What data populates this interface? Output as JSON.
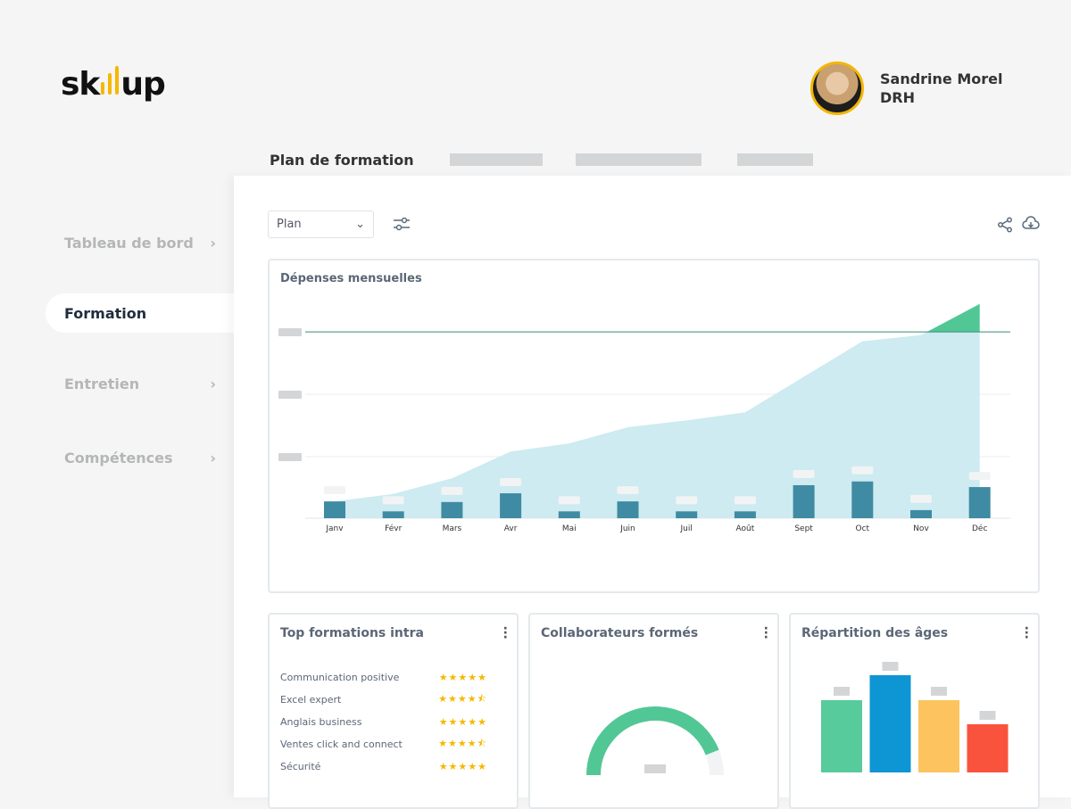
{
  "brand": {
    "logo_text": "skillup",
    "accent": "#f5b800"
  },
  "user": {
    "name": "Sandrine Morel",
    "role": "DRH"
  },
  "tabs": {
    "active": "Plan de formation"
  },
  "sidebar": {
    "items": [
      {
        "label": "Tableau de bord",
        "active": false
      },
      {
        "label": "Formation",
        "active": true
      },
      {
        "label": "Entretien",
        "active": false
      },
      {
        "label": "Compétences",
        "active": false
      }
    ]
  },
  "toolbar": {
    "select_value": "Plan",
    "filter_icon": "sliders-icon",
    "share_icon": "share-icon",
    "download_icon": "cloud-download-icon"
  },
  "monthly": {
    "title": "Dépenses mensuelles"
  },
  "chart_data": [
    {
      "type": "bar",
      "title": "Dépenses mensuelles",
      "categories": [
        "Janv",
        "Févr",
        "Mars",
        "Avr",
        "Mai",
        "Juin",
        "Juil",
        "Août",
        "Sept",
        "Oct",
        "Nov",
        "Déc"
      ],
      "series": [
        {
          "type": "bar",
          "values": [
            27,
            11,
            26,
            40,
            11,
            27,
            11,
            11,
            53,
            59,
            13,
            50
          ],
          "color": "#3f8ba3"
        },
        {
          "type": "area",
          "values": [
            27,
            39,
            64,
            107,
            120,
            146,
            157,
            170,
            227,
            284,
            294,
            344
          ],
          "color": "#cdebf0"
        }
      ],
      "target": 299,
      "target_color": "#3c8c7a",
      "over_target_color": "#52c796",
      "ylim": [
        0,
        345
      ],
      "grid": true
    },
    {
      "type": "gauge",
      "title": "Collaborateurs formés",
      "value": 0.88,
      "color": "#52c796"
    },
    {
      "type": "bar",
      "title": "Répartition des âges",
      "values": [
        81,
        109,
        81,
        54
      ],
      "colors": [
        "#57cb9c",
        "#0e95d3",
        "#fcc35e",
        "#f9533e"
      ]
    }
  ],
  "top_formations": {
    "title": "Top formations intra",
    "items": [
      {
        "label": "Communication positive",
        "rating": 5
      },
      {
        "label": "Excel expert",
        "rating": 4.5
      },
      {
        "label": "Anglais business",
        "rating": 5
      },
      {
        "label": "Ventes click and connect",
        "rating": 4.5
      },
      {
        "label": "Sécurité",
        "rating": 5
      }
    ]
  },
  "collab": {
    "title": "Collaborateurs formés"
  },
  "ages": {
    "title": "Répartition des âges"
  }
}
